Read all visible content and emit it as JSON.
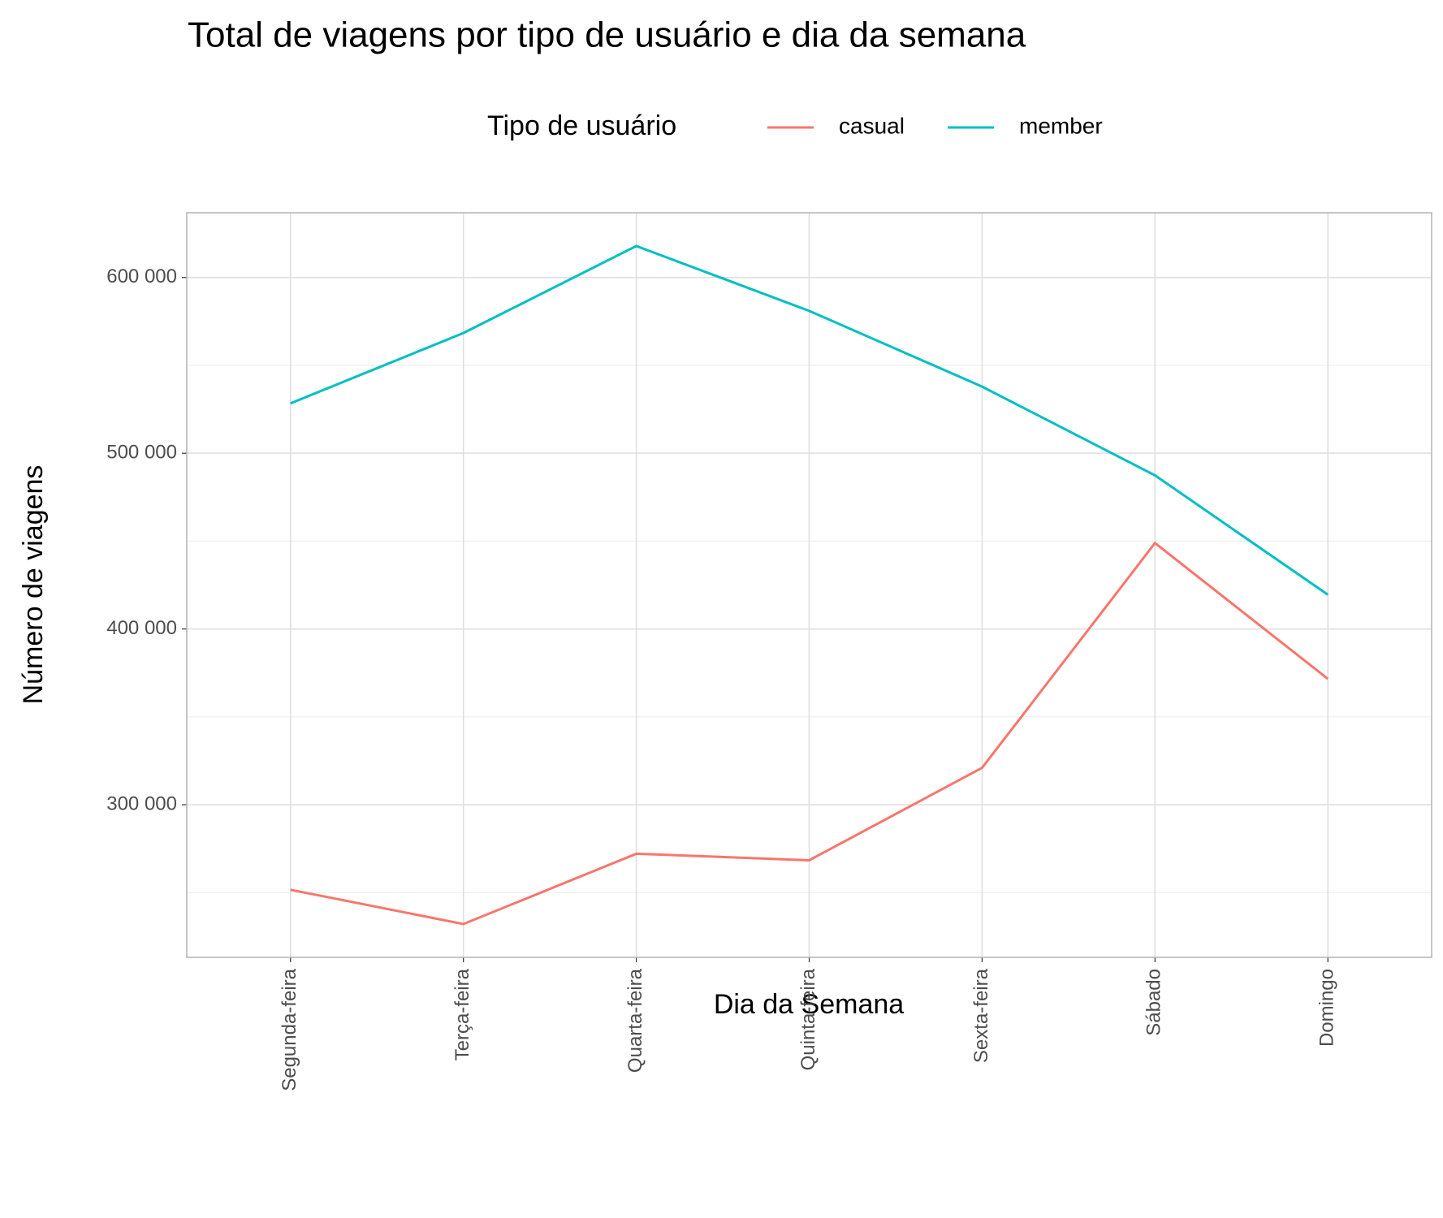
{
  "chart_data": {
    "type": "line",
    "title": "Total de viagens por tipo de usuário e dia da semana",
    "x_label": "Dia da Semana",
    "y_label": "Número de viagens",
    "legend_title": "Tipo de usuário",
    "legend_position": "top",
    "categories": [
      "Segunda-feira",
      "Terça-feira",
      "Quarta-feira",
      "Quinta-feira",
      "Sexta-feira",
      "Sábado",
      "Domingo"
    ],
    "series": [
      {
        "name": "casual",
        "color": "#f8766d",
        "values": [
          251600,
          232100,
          272100,
          268400,
          321000,
          448900,
          371600
        ]
      },
      {
        "name": "member",
        "color": "#00bfc4",
        "values": [
          528400,
          568400,
          617900,
          581000,
          537900,
          487400,
          419500
        ]
      }
    ],
    "ylim": [
      213158,
      636842
    ],
    "yticks": [
      {
        "value": 300000,
        "label": "300 000"
      },
      {
        "value": 400000,
        "label": "400 000"
      },
      {
        "value": 500000,
        "label": "500 000"
      },
      {
        "value": 600000,
        "label": "600 000"
      }
    ],
    "y_minor_grid": [
      250000,
      350000,
      450000,
      550000
    ],
    "grid": true
  }
}
